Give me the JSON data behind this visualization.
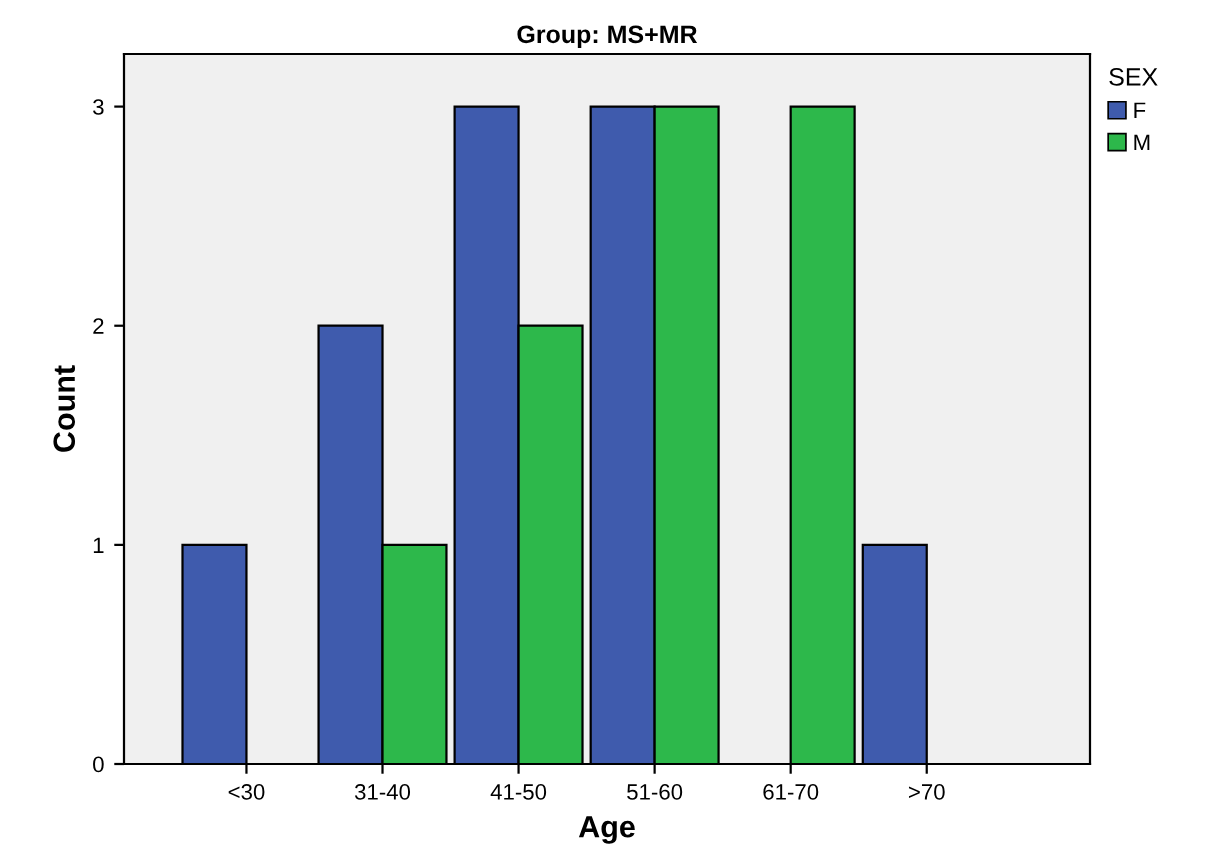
{
  "chart_data": {
    "type": "bar",
    "title": "Group: MS+MR",
    "xlabel": "Age",
    "ylabel": "Count",
    "legend_title": "SEX",
    "categories": [
      "<30",
      "31-40",
      "41-50",
      "51-60",
      "61-70",
      ">70"
    ],
    "series": [
      {
        "name": "F",
        "color": "#3f5bad",
        "values": [
          1,
          2,
          3,
          3,
          null,
          1
        ]
      },
      {
        "name": "M",
        "color": "#2db84b",
        "values": [
          null,
          1,
          2,
          3,
          3,
          null
        ]
      }
    ],
    "ylim": [
      0,
      3.24
    ],
    "yticks": [
      0,
      1,
      2,
      3
    ],
    "grid": false,
    "legend": "top right"
  }
}
